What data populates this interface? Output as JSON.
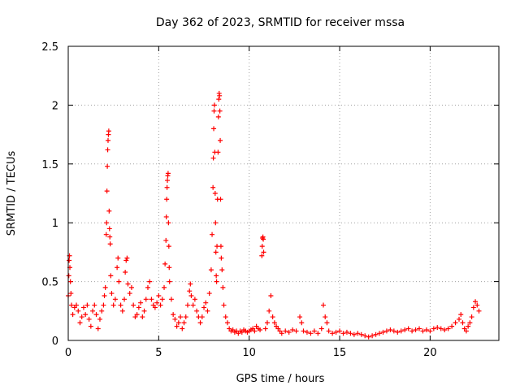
{
  "chart_data": {
    "type": "scatter",
    "title": "Day 362 of 2023, SRMTID for receiver mssa",
    "xlabel": "GPS time / hours",
    "ylabel": "SRMTID / TECUs",
    "xlim": [
      0,
      23.8
    ],
    "ylim": [
      0,
      2.5
    ],
    "xticks": [
      0,
      5,
      10,
      15,
      20
    ],
    "xtick_labels": [
      "0",
      "5",
      "10",
      "15",
      "20"
    ],
    "yticks": [
      0,
      0.5,
      1,
      1.5,
      2,
      2.5
    ],
    "ytick_labels": [
      "0",
      "0.5",
      "1",
      "1.5",
      "2",
      "2.5"
    ],
    "grid": true,
    "marker": "+",
    "series": [
      {
        "name": "mssa",
        "color": "#ff0000",
        "points": [
          [
            0.0,
            0.38
          ],
          [
            0.03,
            0.55
          ],
          [
            0.05,
            0.68
          ],
          [
            0.07,
            0.72
          ],
          [
            0.09,
            0.62
          ],
          [
            0.12,
            0.5
          ],
          [
            0.15,
            0.4
          ],
          [
            0.18,
            0.3
          ],
          [
            0.25,
            0.22
          ],
          [
            0.35,
            0.28
          ],
          [
            0.45,
            0.3
          ],
          [
            0.55,
            0.25
          ],
          [
            0.65,
            0.15
          ],
          [
            0.75,
            0.2
          ],
          [
            0.85,
            0.28
          ],
          [
            0.95,
            0.22
          ],
          [
            1.05,
            0.3
          ],
          [
            1.15,
            0.18
          ],
          [
            1.25,
            0.12
          ],
          [
            1.35,
            0.25
          ],
          [
            1.45,
            0.3
          ],
          [
            1.55,
            0.22
          ],
          [
            1.65,
            0.1
          ],
          [
            1.75,
            0.18
          ],
          [
            1.85,
            0.25
          ],
          [
            1.95,
            0.3
          ],
          [
            2.0,
            0.38
          ],
          [
            2.05,
            0.45
          ],
          [
            2.1,
            0.9
          ],
          [
            2.12,
            1.0
          ],
          [
            2.14,
            1.27
          ],
          [
            2.16,
            1.48
          ],
          [
            2.18,
            1.62
          ],
          [
            2.2,
            1.7
          ],
          [
            2.22,
            1.75
          ],
          [
            2.24,
            1.78
          ],
          [
            2.26,
            1.1
          ],
          [
            2.28,
            0.95
          ],
          [
            2.3,
            0.88
          ],
          [
            2.32,
            0.82
          ],
          [
            2.35,
            0.55
          ],
          [
            2.4,
            0.4
          ],
          [
            2.5,
            0.3
          ],
          [
            2.6,
            0.35
          ],
          [
            2.7,
            0.62
          ],
          [
            2.75,
            0.7
          ],
          [
            2.8,
            0.5
          ],
          [
            2.9,
            0.3
          ],
          [
            3.0,
            0.25
          ],
          [
            3.1,
            0.35
          ],
          [
            3.15,
            0.58
          ],
          [
            3.2,
            0.68
          ],
          [
            3.25,
            0.7
          ],
          [
            3.3,
            0.48
          ],
          [
            3.4,
            0.4
          ],
          [
            3.5,
            0.45
          ],
          [
            3.6,
            0.3
          ],
          [
            3.7,
            0.2
          ],
          [
            3.8,
            0.22
          ],
          [
            3.9,
            0.28
          ],
          [
            4.0,
            0.32
          ],
          [
            4.1,
            0.2
          ],
          [
            4.2,
            0.25
          ],
          [
            4.3,
            0.35
          ],
          [
            4.4,
            0.45
          ],
          [
            4.5,
            0.5
          ],
          [
            4.6,
            0.35
          ],
          [
            4.7,
            0.3
          ],
          [
            4.8,
            0.28
          ],
          [
            4.9,
            0.32
          ],
          [
            5.0,
            0.38
          ],
          [
            5.1,
            0.3
          ],
          [
            5.2,
            0.35
          ],
          [
            5.3,
            0.45
          ],
          [
            5.35,
            0.65
          ],
          [
            5.4,
            0.85
          ],
          [
            5.42,
            1.05
          ],
          [
            5.44,
            1.2
          ],
          [
            5.46,
            1.3
          ],
          [
            5.48,
            1.36
          ],
          [
            5.5,
            1.4
          ],
          [
            5.52,
            1.42
          ],
          [
            5.54,
            1.0
          ],
          [
            5.56,
            0.8
          ],
          [
            5.58,
            0.62
          ],
          [
            5.6,
            0.5
          ],
          [
            5.7,
            0.35
          ],
          [
            5.8,
            0.22
          ],
          [
            5.9,
            0.18
          ],
          [
            6.0,
            0.12
          ],
          [
            6.1,
            0.15
          ],
          [
            6.2,
            0.2
          ],
          [
            6.3,
            0.1
          ],
          [
            6.4,
            0.15
          ],
          [
            6.5,
            0.2
          ],
          [
            6.6,
            0.3
          ],
          [
            6.7,
            0.42
          ],
          [
            6.75,
            0.48
          ],
          [
            6.8,
            0.38
          ],
          [
            6.9,
            0.3
          ],
          [
            7.0,
            0.35
          ],
          [
            7.1,
            0.25
          ],
          [
            7.2,
            0.2
          ],
          [
            7.3,
            0.15
          ],
          [
            7.4,
            0.2
          ],
          [
            7.5,
            0.28
          ],
          [
            7.6,
            0.32
          ],
          [
            7.7,
            0.25
          ],
          [
            7.8,
            0.4
          ],
          [
            7.9,
            0.6
          ],
          [
            7.95,
            0.9
          ],
          [
            8.0,
            1.3
          ],
          [
            8.02,
            1.55
          ],
          [
            8.04,
            1.8
          ],
          [
            8.06,
            1.95
          ],
          [
            8.08,
            2.0
          ],
          [
            8.1,
            1.6
          ],
          [
            8.12,
            1.25
          ],
          [
            8.14,
            1.0
          ],
          [
            8.16,
            0.75
          ],
          [
            8.18,
            0.55
          ],
          [
            8.2,
            0.5
          ],
          [
            8.22,
            0.8
          ],
          [
            8.25,
            1.2
          ],
          [
            8.28,
            1.6
          ],
          [
            8.3,
            1.9
          ],
          [
            8.32,
            2.05
          ],
          [
            8.34,
            2.1
          ],
          [
            8.36,
            2.08
          ],
          [
            8.38,
            1.95
          ],
          [
            8.4,
            1.7
          ],
          [
            8.42,
            1.2
          ],
          [
            8.44,
            0.8
          ],
          [
            8.46,
            0.7
          ],
          [
            8.5,
            0.6
          ],
          [
            8.55,
            0.45
          ],
          [
            8.6,
            0.3
          ],
          [
            8.7,
            0.2
          ],
          [
            8.8,
            0.15
          ],
          [
            8.9,
            0.1
          ],
          [
            9.0,
            0.08
          ],
          [
            9.1,
            0.09
          ],
          [
            9.2,
            0.07
          ],
          [
            9.3,
            0.08
          ],
          [
            9.4,
            0.06
          ],
          [
            9.5,
            0.08
          ],
          [
            9.6,
            0.07
          ],
          [
            9.7,
            0.09
          ],
          [
            9.8,
            0.08
          ],
          [
            9.9,
            0.07
          ],
          [
            10.0,
            0.08
          ],
          [
            10.1,
            0.09
          ],
          [
            10.2,
            0.1
          ],
          [
            10.3,
            0.08
          ],
          [
            10.4,
            0.12
          ],
          [
            10.5,
            0.1
          ],
          [
            10.6,
            0.09
          ],
          [
            10.7,
            0.72
          ],
          [
            10.72,
            0.8
          ],
          [
            10.74,
            0.87
          ],
          [
            10.76,
            0.88
          ],
          [
            10.78,
            0.86
          ],
          [
            10.8,
            0.75
          ],
          [
            10.9,
            0.1
          ],
          [
            11.0,
            0.15
          ],
          [
            11.1,
            0.25
          ],
          [
            11.2,
            0.38
          ],
          [
            11.3,
            0.2
          ],
          [
            11.4,
            0.15
          ],
          [
            11.5,
            0.12
          ],
          [
            11.6,
            0.1
          ],
          [
            11.7,
            0.08
          ],
          [
            11.8,
            0.06
          ],
          [
            12.0,
            0.08
          ],
          [
            12.2,
            0.07
          ],
          [
            12.4,
            0.09
          ],
          [
            12.6,
            0.08
          ],
          [
            12.8,
            0.2
          ],
          [
            12.9,
            0.15
          ],
          [
            13.0,
            0.08
          ],
          [
            13.2,
            0.07
          ],
          [
            13.4,
            0.06
          ],
          [
            13.6,
            0.08
          ],
          [
            13.8,
            0.06
          ],
          [
            14.0,
            0.1
          ],
          [
            14.1,
            0.3
          ],
          [
            14.2,
            0.2
          ],
          [
            14.3,
            0.15
          ],
          [
            14.4,
            0.08
          ],
          [
            14.6,
            0.06
          ],
          [
            14.8,
            0.07
          ],
          [
            15.0,
            0.08
          ],
          [
            15.2,
            0.06
          ],
          [
            15.4,
            0.07
          ],
          [
            15.6,
            0.06
          ],
          [
            15.8,
            0.05
          ],
          [
            16.0,
            0.06
          ],
          [
            16.2,
            0.05
          ],
          [
            16.4,
            0.04
          ],
          [
            16.6,
            0.03
          ],
          [
            16.8,
            0.04
          ],
          [
            17.0,
            0.05
          ],
          [
            17.2,
            0.06
          ],
          [
            17.4,
            0.07
          ],
          [
            17.6,
            0.08
          ],
          [
            17.8,
            0.09
          ],
          [
            18.0,
            0.08
          ],
          [
            18.2,
            0.07
          ],
          [
            18.4,
            0.08
          ],
          [
            18.6,
            0.09
          ],
          [
            18.8,
            0.1
          ],
          [
            19.0,
            0.08
          ],
          [
            19.2,
            0.09
          ],
          [
            19.4,
            0.1
          ],
          [
            19.6,
            0.08
          ],
          [
            19.8,
            0.09
          ],
          [
            20.0,
            0.08
          ],
          [
            20.2,
            0.1
          ],
          [
            20.4,
            0.11
          ],
          [
            20.6,
            0.1
          ],
          [
            20.8,
            0.09
          ],
          [
            21.0,
            0.1
          ],
          [
            21.2,
            0.12
          ],
          [
            21.4,
            0.15
          ],
          [
            21.6,
            0.18
          ],
          [
            21.7,
            0.22
          ],
          [
            21.8,
            0.15
          ],
          [
            21.9,
            0.1
          ],
          [
            22.0,
            0.08
          ],
          [
            22.1,
            0.12
          ],
          [
            22.2,
            0.15
          ],
          [
            22.3,
            0.2
          ],
          [
            22.4,
            0.28
          ],
          [
            22.5,
            0.33
          ],
          [
            22.6,
            0.3
          ],
          [
            22.7,
            0.25
          ]
        ]
      }
    ]
  }
}
